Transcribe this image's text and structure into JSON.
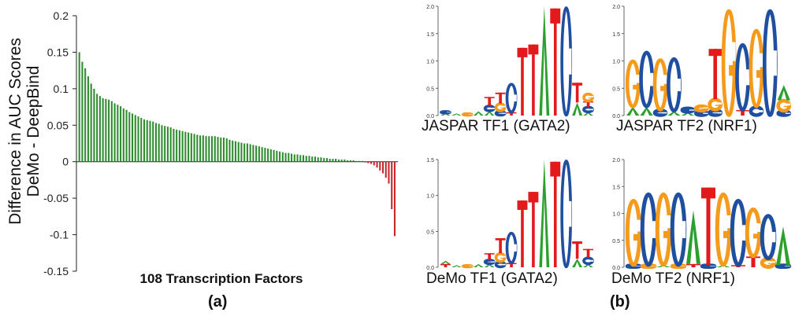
{
  "colors": {
    "positive": "#2e8b2e",
    "negative": "#c62828",
    "A": "#2ca02c",
    "C": "#1f4fa0",
    "G": "#f59a1a",
    "T": "#e31a1c"
  },
  "panel_a": {
    "caption": "(a)",
    "ylabel_line1": "Difference in AUC Scores",
    "ylabel_line2": "DeMo - DeepBind"
  },
  "panel_b": {
    "caption": "(b)",
    "logos": [
      {
        "label": "JASPAR TF1 (GATA2)",
        "ticks": [
          "2.0",
          "1.5",
          "1.0",
          "0.5",
          "0.0"
        ]
      },
      {
        "label": "JASPAR TF2 (NRF1)",
        "ticks": [
          "2.0",
          "1.5",
          "1.0",
          "0.5",
          "0.0"
        ]
      },
      {
        "label": "DeMo TF1 (GATA2)",
        "ticks": [
          "1.5",
          "1.0",
          "0.5",
          "0.0"
        ]
      },
      {
        "label": "DeMo TF2 (NRF1)",
        "ticks": [
          "2.0",
          "1.5",
          "1.0",
          "0.5",
          "0.0"
        ]
      }
    ]
  },
  "chart_data": [
    {
      "type": "bar",
      "xlabel": "108 Transcription Factors",
      "ylabel": "Difference in AUC Scores DeMo - DeepBind",
      "ylim": [
        -0.15,
        0.2
      ],
      "yticks": [
        "0.2",
        "0.15",
        "0.1",
        "0.05",
        "0",
        "-0.05",
        "-0.1",
        "-0.15"
      ],
      "grid": false,
      "values": [
        0.15,
        0.137,
        0.128,
        0.117,
        0.107,
        0.1,
        0.093,
        0.09,
        0.087,
        0.086,
        0.085,
        0.083,
        0.08,
        0.078,
        0.076,
        0.073,
        0.071,
        0.068,
        0.066,
        0.064,
        0.062,
        0.06,
        0.058,
        0.057,
        0.056,
        0.055,
        0.053,
        0.052,
        0.05,
        0.049,
        0.048,
        0.047,
        0.045,
        0.044,
        0.043,
        0.042,
        0.041,
        0.04,
        0.039,
        0.038,
        0.037,
        0.036,
        0.036,
        0.035,
        0.035,
        0.035,
        0.035,
        0.034,
        0.033,
        0.033,
        0.032,
        0.03,
        0.029,
        0.028,
        0.027,
        0.026,
        0.025,
        0.025,
        0.024,
        0.023,
        0.022,
        0.021,
        0.02,
        0.019,
        0.018,
        0.017,
        0.016,
        0.015,
        0.014,
        0.013,
        0.012,
        0.012,
        0.011,
        0.01,
        0.01,
        0.009,
        0.009,
        0.008,
        0.008,
        0.007,
        0.007,
        0.006,
        0.006,
        0.005,
        0.005,
        0.004,
        0.004,
        0.004,
        0.003,
        0.003,
        0.003,
        0.002,
        0.002,
        0.002,
        0.001,
        0.001,
        0.001,
        -0.001,
        -0.002,
        -0.003,
        -0.005,
        -0.008,
        -0.012,
        -0.016,
        -0.022,
        -0.03,
        -0.065,
        -0.102
      ]
    }
  ]
}
